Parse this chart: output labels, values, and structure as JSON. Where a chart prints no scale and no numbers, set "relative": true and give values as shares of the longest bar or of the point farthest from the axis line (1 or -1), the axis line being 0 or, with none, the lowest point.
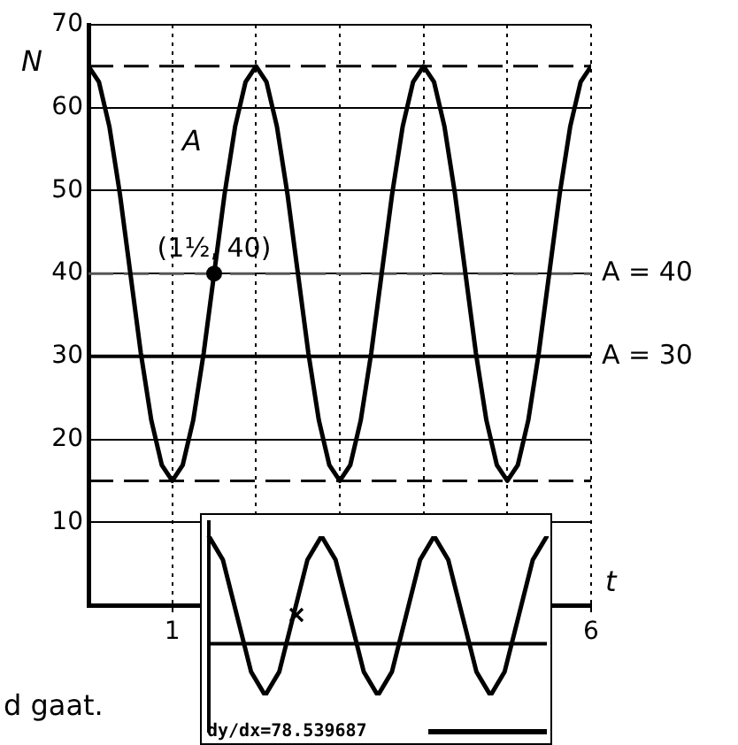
{
  "chart_data": [
    {
      "type": "line",
      "xlabel": "t",
      "ylabel": "N",
      "x": [
        0,
        0.125,
        0.25,
        0.375,
        0.5,
        0.625,
        0.75,
        0.875,
        1,
        1.125,
        1.25,
        1.375,
        1.5,
        1.625,
        1.75,
        1.875,
        2,
        2.125,
        2.25,
        2.375,
        2.5,
        2.625,
        2.75,
        2.875,
        3,
        3.125,
        3.25,
        3.375,
        3.5,
        3.625,
        3.75,
        3.875,
        4,
        4.125,
        4.25,
        4.375,
        4.5,
        4.625,
        4.75,
        4.875,
        5,
        5.125,
        5.25,
        5.375,
        5.5,
        5.625,
        5.75,
        5.875,
        6
      ],
      "series": [
        {
          "color": "#000000",
          "values": [
            65,
            63.1,
            57.7,
            49.6,
            40,
            30.4,
            22.3,
            16.9,
            15,
            16.9,
            22.3,
            30.4,
            40,
            49.6,
            57.7,
            63.1,
            65,
            63.1,
            57.7,
            49.6,
            40,
            30.4,
            22.3,
            16.9,
            15,
            16.9,
            22.3,
            30.4,
            40,
            49.6,
            57.7,
            63.1,
            65,
            63.1,
            57.7,
            49.6,
            40,
            30.4,
            22.3,
            16.9,
            15,
            16.9,
            22.3,
            30.4,
            40,
            49.6,
            57.7,
            63.1,
            65
          ]
        },
        {
          "type": "scatter",
          "color": "#000000",
          "x": [
            1.5
          ],
          "values": [
            40
          ]
        }
      ],
      "xlim": [
        0,
        6
      ],
      "xticks": [
        {
          "value": 1,
          "label": "1"
        },
        {
          "value": 2,
          "label": null
        },
        {
          "value": 3,
          "label": null
        },
        {
          "value": 4,
          "label": null
        },
        {
          "value": 5,
          "label": null
        },
        {
          "value": 6,
          "label": "6"
        }
      ],
      "ylim": [
        0,
        70
      ],
      "yticks": [
        10,
        20,
        30,
        40,
        50,
        60,
        70
      ],
      "grid": true,
      "line_style": "solid",
      "legend": false,
      "ref_lines": [
        {
          "axis": "y",
          "value": 65,
          "label": null,
          "color": "#000000",
          "line_style": "dashed"
        },
        {
          "axis": "y",
          "value": 15,
          "label": null,
          "color": "#000000",
          "line_style": "dashed"
        },
        {
          "axis": "y",
          "value": 40,
          "label": "A = 40",
          "color": "#555555",
          "line_style": "dashed"
        },
        {
          "axis": "y",
          "value": 30,
          "label": "A = 30",
          "color": "#000000",
          "line_style": "solid"
        }
      ],
      "annotations": [
        {
          "text": "(1½, 40)",
          "x": 1.5,
          "y": 40
        },
        "A",
        "d gaat."
      ]
    },
    {
      "type": "line",
      "relative": true,
      "categories": [
        null,
        null,
        null,
        null,
        null,
        null,
        null,
        null,
        null,
        null,
        null,
        null,
        null,
        null,
        null,
        null,
        null,
        null,
        null,
        null,
        null,
        null,
        null,
        null,
        null
      ],
      "series": [
        {
          "color": "#000000",
          "values": [
            1,
            0.78,
            0.26,
            -0.26,
            -0.48,
            -0.26,
            0.26,
            0.78,
            1,
            0.78,
            0.26,
            -0.26,
            -0.48,
            -0.26,
            0.26,
            0.78,
            1,
            0.78,
            0.26,
            -0.26,
            -0.48,
            -0.26,
            0.26,
            0.78,
            1
          ]
        }
      ],
      "annotations": [
        "dy/dx=78.539687"
      ]
    }
  ]
}
